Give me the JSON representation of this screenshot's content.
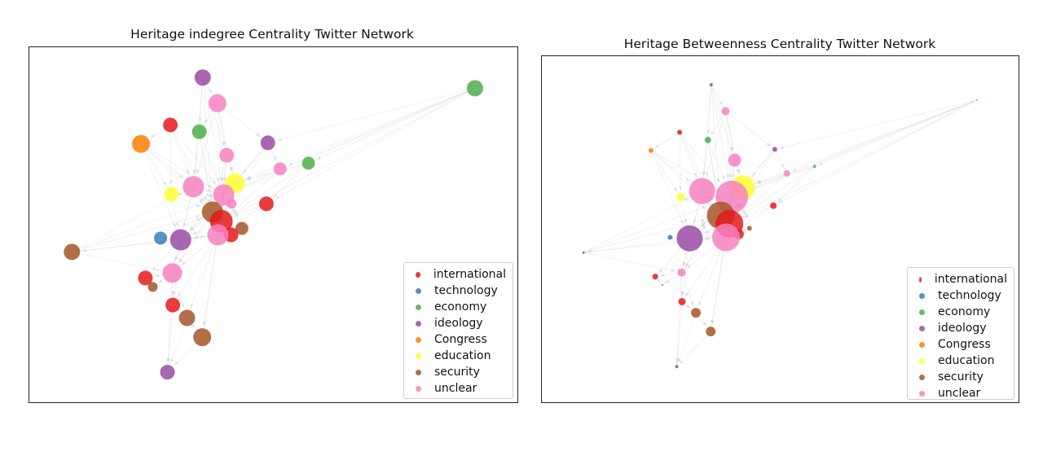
{
  "categories": [
    {
      "key": "international",
      "label": "international",
      "color": "#e41a1c"
    },
    {
      "key": "technology",
      "label": "technology",
      "color": "#377eb8"
    },
    {
      "key": "economy",
      "label": "economy",
      "color": "#4daf4a"
    },
    {
      "key": "ideology",
      "label": "ideology",
      "color": "#984ea3"
    },
    {
      "key": "Congress",
      "label": "Congress",
      "color": "#ff7f00"
    },
    {
      "key": "education",
      "label": "education",
      "color": "#ffff33"
    },
    {
      "key": "security",
      "label": "security",
      "color": "#a65628"
    },
    {
      "key": "unclear",
      "label": "unclear",
      "color": "#f781bf"
    }
  ],
  "chart_data": [
    {
      "type": "network",
      "title": "Heritage indegree Centrality Twitter Network",
      "legend_position": "lower-right",
      "grid": false,
      "axes_visible": false,
      "size_metric": "indegree centrality",
      "nodes": [
        {
          "id": "n1",
          "cat": "ideology",
          "x": 0.354,
          "y": 0.085,
          "s": 10
        },
        {
          "id": "n2",
          "cat": "economy",
          "x": 0.91,
          "y": 0.115,
          "s": 10
        },
        {
          "id": "n3",
          "cat": "unclear",
          "x": 0.384,
          "y": 0.157,
          "s": 11
        },
        {
          "id": "n4",
          "cat": "international",
          "x": 0.288,
          "y": 0.218,
          "s": 9
        },
        {
          "id": "n5",
          "cat": "economy",
          "x": 0.347,
          "y": 0.237,
          "s": 9
        },
        {
          "id": "n6",
          "cat": "Congress",
          "x": 0.228,
          "y": 0.271,
          "s": 11
        },
        {
          "id": "n7",
          "cat": "ideology",
          "x": 0.487,
          "y": 0.268,
          "s": 9
        },
        {
          "id": "n8",
          "cat": "unclear",
          "x": 0.403,
          "y": 0.303,
          "s": 9
        },
        {
          "id": "n9",
          "cat": "economy",
          "x": 0.57,
          "y": 0.325,
          "s": 8
        },
        {
          "id": "n10",
          "cat": "unclear",
          "x": 0.512,
          "y": 0.341,
          "s": 8
        },
        {
          "id": "n11",
          "cat": "education",
          "x": 0.42,
          "y": 0.381,
          "s": 12
        },
        {
          "id": "n12",
          "cat": "unclear",
          "x": 0.335,
          "y": 0.391,
          "s": 13
        },
        {
          "id": "n13",
          "cat": "education",
          "x": 0.29,
          "y": 0.412,
          "s": 9
        },
        {
          "id": "n14",
          "cat": "unclear",
          "x": 0.397,
          "y": 0.414,
          "s": 13
        },
        {
          "id": "n15",
          "cat": "unclear",
          "x": 0.413,
          "y": 0.439,
          "s": 6
        },
        {
          "id": "n16",
          "cat": "international",
          "x": 0.484,
          "y": 0.439,
          "s": 9
        },
        {
          "id": "n17",
          "cat": "security",
          "x": 0.374,
          "y": 0.462,
          "s": 13
        },
        {
          "id": "n18",
          "cat": "international",
          "x": 0.392,
          "y": 0.488,
          "s": 14
        },
        {
          "id": "n19",
          "cat": "security",
          "x": 0.434,
          "y": 0.508,
          "s": 8
        },
        {
          "id": "n20",
          "cat": "international",
          "x": 0.412,
          "y": 0.526,
          "s": 9
        },
        {
          "id": "n21",
          "cat": "unclear",
          "x": 0.385,
          "y": 0.526,
          "s": 13
        },
        {
          "id": "n22",
          "cat": "technology",
          "x": 0.268,
          "y": 0.535,
          "s": 8
        },
        {
          "id": "n23",
          "cat": "ideology",
          "x": 0.309,
          "y": 0.54,
          "s": 13
        },
        {
          "id": "n24",
          "cat": "security",
          "x": 0.087,
          "y": 0.574,
          "s": 10
        },
        {
          "id": "n25",
          "cat": "unclear",
          "x": 0.292,
          "y": 0.633,
          "s": 12
        },
        {
          "id": "n26",
          "cat": "international",
          "x": 0.237,
          "y": 0.647,
          "s": 9
        },
        {
          "id": "n27",
          "cat": "security",
          "x": 0.252,
          "y": 0.672,
          "s": 6
        },
        {
          "id": "n28",
          "cat": "international",
          "x": 0.293,
          "y": 0.723,
          "s": 9
        },
        {
          "id": "n29",
          "cat": "security",
          "x": 0.322,
          "y": 0.759,
          "s": 10
        },
        {
          "id": "n30",
          "cat": "security",
          "x": 0.353,
          "y": 0.813,
          "s": 11
        },
        {
          "id": "n31",
          "cat": "ideology",
          "x": 0.282,
          "y": 0.911,
          "s": 9
        }
      ]
    },
    {
      "type": "network",
      "title": "Heritage Betweenness Centrality Twitter Network",
      "legend_position": "lower-right",
      "grid": false,
      "axes_visible": false,
      "size_metric": "betweenness centrality",
      "nodes": [
        {
          "id": "n1",
          "cat": "ideology",
          "x": 0.354,
          "y": 0.082,
          "s": 2
        },
        {
          "id": "n2",
          "cat": "economy",
          "x": 0.91,
          "y": 0.126,
          "s": 1
        },
        {
          "id": "n3",
          "cat": "unclear",
          "x": 0.384,
          "y": 0.158,
          "s": 5
        },
        {
          "id": "n4",
          "cat": "international",
          "x": 0.288,
          "y": 0.219,
          "s": 3
        },
        {
          "id": "n5",
          "cat": "economy",
          "x": 0.347,
          "y": 0.241,
          "s": 4
        },
        {
          "id": "n6",
          "cat": "Congress",
          "x": 0.228,
          "y": 0.271,
          "s": 3
        },
        {
          "id": "n7",
          "cat": "ideology",
          "x": 0.487,
          "y": 0.268,
          "s": 3
        },
        {
          "id": "n8",
          "cat": "unclear",
          "x": 0.403,
          "y": 0.299,
          "s": 8
        },
        {
          "id": "n9",
          "cat": "economy",
          "x": 0.57,
          "y": 0.317,
          "s": 2
        },
        {
          "id": "n10",
          "cat": "unclear",
          "x": 0.512,
          "y": 0.337,
          "s": 4
        },
        {
          "id": "n11",
          "cat": "education",
          "x": 0.42,
          "y": 0.378,
          "s": 15
        },
        {
          "id": "n12",
          "cat": "unclear",
          "x": 0.335,
          "y": 0.388,
          "s": 16
        },
        {
          "id": "n13",
          "cat": "education",
          "x": 0.29,
          "y": 0.405,
          "s": 5
        },
        {
          "id": "n14",
          "cat": "unclear",
          "x": 0.397,
          "y": 0.405,
          "s": 20
        },
        {
          "id": "n15",
          "cat": "unclear",
          "x": 0.413,
          "y": 0.43,
          "s": 3
        },
        {
          "id": "n16",
          "cat": "international",
          "x": 0.484,
          "y": 0.43,
          "s": 4
        },
        {
          "id": "n17",
          "cat": "security",
          "x": 0.374,
          "y": 0.458,
          "s": 17
        },
        {
          "id": "n18",
          "cat": "international",
          "x": 0.392,
          "y": 0.482,
          "s": 17
        },
        {
          "id": "n19",
          "cat": "security",
          "x": 0.434,
          "y": 0.495,
          "s": 3
        },
        {
          "id": "n20",
          "cat": "international",
          "x": 0.412,
          "y": 0.512,
          "s": 6
        },
        {
          "id": "n21",
          "cat": "unclear",
          "x": 0.385,
          "y": 0.521,
          "s": 17
        },
        {
          "id": "n22",
          "cat": "technology",
          "x": 0.268,
          "y": 0.521,
          "s": 3
        },
        {
          "id": "n23",
          "cat": "ideology",
          "x": 0.309,
          "y": 0.524,
          "s": 16
        },
        {
          "id": "n24",
          "cat": "security",
          "x": 0.087,
          "y": 0.565,
          "s": 1.5
        },
        {
          "id": "n25",
          "cat": "unclear",
          "x": 0.292,
          "y": 0.622,
          "s": 5
        },
        {
          "id": "n26",
          "cat": "international",
          "x": 0.237,
          "y": 0.634,
          "s": 3.5
        },
        {
          "id": "n27",
          "cat": "security",
          "x": 0.252,
          "y": 0.658,
          "s": 1
        },
        {
          "id": "n28",
          "cat": "international",
          "x": 0.293,
          "y": 0.706,
          "s": 4.5
        },
        {
          "id": "n29",
          "cat": "security",
          "x": 0.322,
          "y": 0.738,
          "s": 6
        },
        {
          "id": "n30",
          "cat": "security",
          "x": 0.353,
          "y": 0.792,
          "s": 6
        },
        {
          "id": "n31",
          "cat": "ideology",
          "x": 0.282,
          "y": 0.893,
          "s": 2
        }
      ]
    }
  ],
  "edges": [
    [
      "n1",
      "n3"
    ],
    [
      "n1",
      "n5"
    ],
    [
      "n1",
      "n8"
    ],
    [
      "n1",
      "n12"
    ],
    [
      "n1",
      "n14"
    ],
    [
      "n1",
      "n17"
    ],
    [
      "n2",
      "n9"
    ],
    [
      "n2",
      "n10"
    ],
    [
      "n2",
      "n11"
    ],
    [
      "n2",
      "n14"
    ],
    [
      "n2",
      "n18"
    ],
    [
      "n2",
      "n16"
    ],
    [
      "n2",
      "n7"
    ],
    [
      "n3",
      "n5"
    ],
    [
      "n3",
      "n8"
    ],
    [
      "n3",
      "n11"
    ],
    [
      "n3",
      "n12"
    ],
    [
      "n3",
      "n14"
    ],
    [
      "n3",
      "n7"
    ],
    [
      "n4",
      "n6"
    ],
    [
      "n4",
      "n12"
    ],
    [
      "n4",
      "n13"
    ],
    [
      "n4",
      "n17"
    ],
    [
      "n4",
      "n14"
    ],
    [
      "n5",
      "n12"
    ],
    [
      "n5",
      "n14"
    ],
    [
      "n5",
      "n17"
    ],
    [
      "n5",
      "n21"
    ],
    [
      "n6",
      "n12"
    ],
    [
      "n6",
      "n13"
    ],
    [
      "n6",
      "n17"
    ],
    [
      "n6",
      "n23"
    ],
    [
      "n6",
      "n14"
    ],
    [
      "n7",
      "n11"
    ],
    [
      "n7",
      "n14"
    ],
    [
      "n7",
      "n18"
    ],
    [
      "n7",
      "n10"
    ],
    [
      "n8",
      "n11"
    ],
    [
      "n8",
      "n14"
    ],
    [
      "n8",
      "n17"
    ],
    [
      "n8",
      "n21"
    ],
    [
      "n9",
      "n11"
    ],
    [
      "n9",
      "n14"
    ],
    [
      "n9",
      "n16"
    ],
    [
      "n9",
      "n18"
    ],
    [
      "n10",
      "n11"
    ],
    [
      "n10",
      "n14"
    ],
    [
      "n10",
      "n18"
    ],
    [
      "n11",
      "n14"
    ],
    [
      "n11",
      "n17"
    ],
    [
      "n11",
      "n18"
    ],
    [
      "n11",
      "n21"
    ],
    [
      "n11",
      "n23"
    ],
    [
      "n12",
      "n14"
    ],
    [
      "n12",
      "n17"
    ],
    [
      "n12",
      "n21"
    ],
    [
      "n12",
      "n23"
    ],
    [
      "n12",
      "n25"
    ],
    [
      "n13",
      "n14"
    ],
    [
      "n13",
      "n17"
    ],
    [
      "n13",
      "n23"
    ],
    [
      "n14",
      "n17"
    ],
    [
      "n14",
      "n18"
    ],
    [
      "n14",
      "n21"
    ],
    [
      "n14",
      "n23"
    ],
    [
      "n14",
      "n25"
    ],
    [
      "n14",
      "n30"
    ],
    [
      "n16",
      "n18"
    ],
    [
      "n16",
      "n21"
    ],
    [
      "n17",
      "n18"
    ],
    [
      "n17",
      "n21"
    ],
    [
      "n17",
      "n23"
    ],
    [
      "n17",
      "n25"
    ],
    [
      "n18",
      "n21"
    ],
    [
      "n18",
      "n23"
    ],
    [
      "n19",
      "n21"
    ],
    [
      "n20",
      "n21"
    ],
    [
      "n21",
      "n23"
    ],
    [
      "n21",
      "n25"
    ],
    [
      "n21",
      "n28"
    ],
    [
      "n21",
      "n29"
    ],
    [
      "n21",
      "n30"
    ],
    [
      "n22",
      "n23"
    ],
    [
      "n22",
      "n17"
    ],
    [
      "n23",
      "n25"
    ],
    [
      "n23",
      "n26"
    ],
    [
      "n23",
      "n24"
    ],
    [
      "n23",
      "n28"
    ],
    [
      "n24",
      "n12"
    ],
    [
      "n24",
      "n17"
    ],
    [
      "n24",
      "n14"
    ],
    [
      "n24",
      "n21"
    ],
    [
      "n24",
      "n25"
    ],
    [
      "n25",
      "n26"
    ],
    [
      "n25",
      "n27"
    ],
    [
      "n25",
      "n28"
    ],
    [
      "n25",
      "n29"
    ],
    [
      "n25",
      "n31"
    ],
    [
      "n26",
      "n27"
    ],
    [
      "n28",
      "n29"
    ],
    [
      "n29",
      "n30"
    ],
    [
      "n29",
      "n31"
    ],
    [
      "n30",
      "n31"
    ],
    [
      "n28",
      "n31"
    ]
  ]
}
